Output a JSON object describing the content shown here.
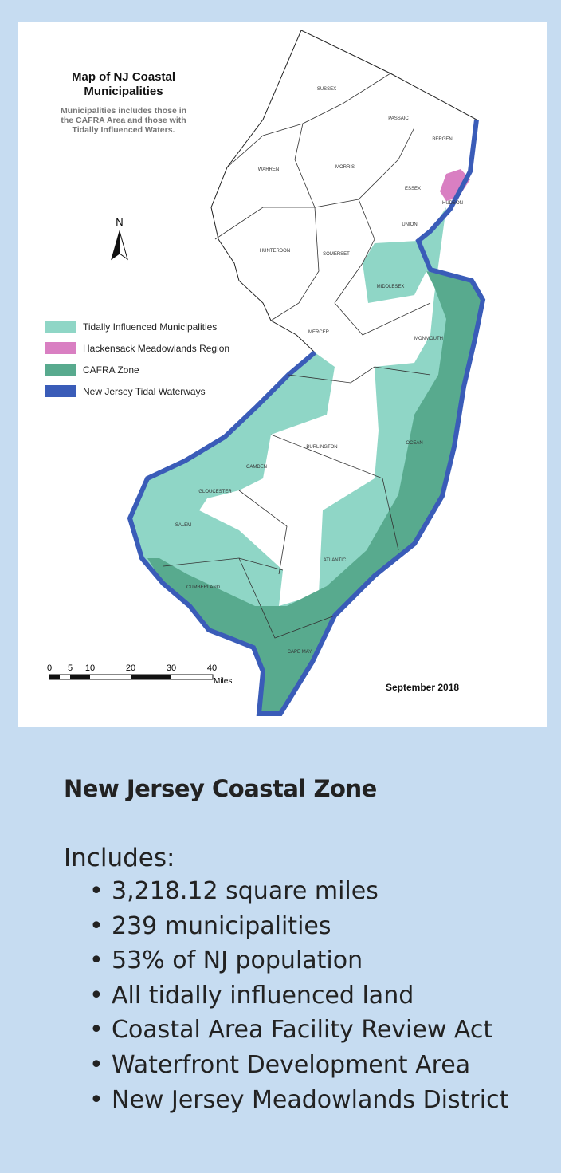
{
  "map": {
    "title": "Map of NJ Coastal Municipalities",
    "subtitle": "Municipalities includes those in the CAFRA Area and those with Tidally Influenced Waters.",
    "north": "N",
    "date": "September 2018",
    "counties": [
      "SUSSEX",
      "PASSAIC",
      "BERGEN",
      "WARREN",
      "MORRIS",
      "ESSEX",
      "HUDSON",
      "UNION",
      "HUNTERDON",
      "SOMERSET",
      "MIDDLESEX",
      "MERCER",
      "MONMOUTH",
      "BURLINGTON",
      "OCEAN",
      "CAMDEN",
      "GLOUCESTER",
      "SALEM",
      "ATLANTIC",
      "CUMBERLAND",
      "CAPE MAY"
    ],
    "legend": [
      {
        "label": "Tidally Influenced Municipalities",
        "color": "#8fd6c6"
      },
      {
        "label": "Hackensack Meadowlands Region",
        "color": "#d97fc2"
      },
      {
        "label": "CAFRA Zone",
        "color": "#58aa8e"
      },
      {
        "label": "New Jersey Tidal Waterways",
        "color": "#3a5cb8"
      }
    ],
    "scale": {
      "labels": [
        "0",
        "5",
        "10",
        "20",
        "30",
        "40"
      ],
      "unit": "Miles"
    }
  },
  "info": {
    "heading": "New Jersey Coastal Zone",
    "intro": "Includes:",
    "bullets": [
      "3,218.12 square miles",
      "239 municipalities",
      "53% of NJ population",
      "All tidally influenced land",
      "Coastal Area Facility Review Act",
      "Waterfront Development Area",
      "New Jersey Meadowlands District"
    ]
  }
}
